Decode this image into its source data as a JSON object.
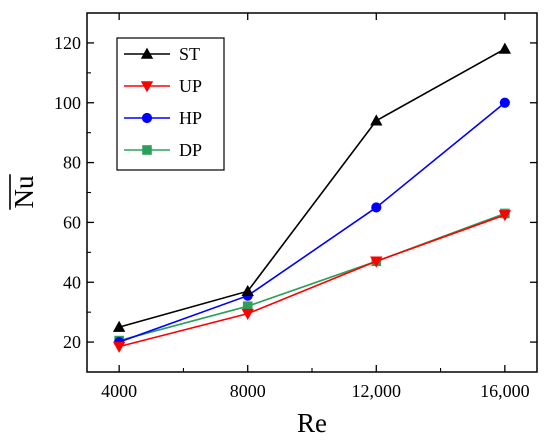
{
  "chart_data": {
    "type": "line",
    "title": "",
    "xlabel": "Re",
    "ylabel": "Nu",
    "ylabel_overline": true,
    "x": [
      4000,
      8000,
      12000,
      16000
    ],
    "x_tick_labels": [
      "4000",
      "8000",
      "12,000",
      "16,000"
    ],
    "xlim": [
      3000,
      17000
    ],
    "ylim": [
      10,
      130
    ],
    "y_ticks": [
      20,
      40,
      60,
      80,
      100,
      120
    ],
    "y_tick_labels": [
      "20",
      "40",
      "60",
      "80",
      "100",
      "120"
    ],
    "grid": false,
    "legend_position": "top-left",
    "series": [
      {
        "name": "ST",
        "color": "#000000",
        "marker": "triangle-up",
        "values": [
          25,
          37,
          94,
          118
        ]
      },
      {
        "name": "UP",
        "color": "#ff0000",
        "marker": "triangle-down",
        "values": [
          18.5,
          29.5,
          47,
          62.5
        ]
      },
      {
        "name": "HP",
        "color": "#0000ff",
        "marker": "circle",
        "values": [
          20,
          35.5,
          65,
          100
        ]
      },
      {
        "name": "DP",
        "color": "#2ca05a",
        "marker": "square",
        "values": [
          20.5,
          32,
          47,
          63
        ]
      }
    ]
  }
}
